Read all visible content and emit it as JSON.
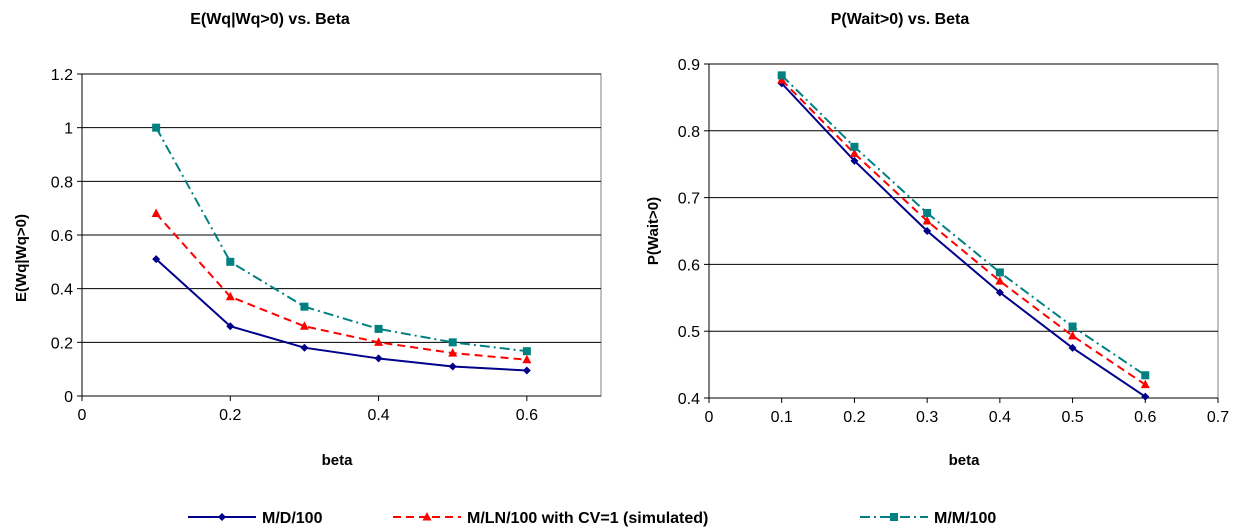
{
  "chart_data": [
    {
      "type": "line",
      "title": "E(Wq|Wq>0) vs. Beta",
      "xlabel": "beta",
      "ylabel": "E(Wq|Wq>0)",
      "xlim": [
        0,
        0.7
      ],
      "ylim": [
        0,
        1.2
      ],
      "xticks": [
        "0",
        "0.2",
        "0.4",
        "0.6"
      ],
      "xtick_values": [
        0,
        0.2,
        0.4,
        0.6
      ],
      "yticks": [
        "0",
        "0.2",
        "0.4",
        "0.6",
        "0.8",
        "1",
        "1.2"
      ],
      "ytick_values": [
        0,
        0.2,
        0.4,
        0.6,
        0.8,
        1,
        1.2
      ],
      "grid": true,
      "x": [
        0.1,
        0.2,
        0.3,
        0.4,
        0.5,
        0.6
      ],
      "series": [
        {
          "name": "M/D/100",
          "values": [
            0.51,
            0.26,
            0.18,
            0.14,
            0.11,
            0.095
          ]
        },
        {
          "name": "M/LN/100 with CV=1 (simulated)",
          "values": [
            0.68,
            0.37,
            0.26,
            0.2,
            0.16,
            0.135
          ]
        },
        {
          "name": "M/M/100",
          "values": [
            1.0,
            0.5,
            0.333,
            0.25,
            0.2,
            0.167
          ]
        }
      ]
    },
    {
      "type": "line",
      "title": "P(Wait>0) vs. Beta",
      "xlabel": "beta",
      "ylabel": "P(Wait>0)",
      "xlim": [
        0,
        0.7
      ],
      "ylim": [
        0.4,
        0.9
      ],
      "xticks": [
        "0",
        "0.1",
        "0.2",
        "0.3",
        "0.4",
        "0.5",
        "0.6",
        "0.7"
      ],
      "xtick_values": [
        0,
        0.1,
        0.2,
        0.3,
        0.4,
        0.5,
        0.6,
        0.7
      ],
      "yticks": [
        "0.4",
        "0.5",
        "0.6",
        "0.7",
        "0.8",
        "0.9"
      ],
      "ytick_values": [
        0.4,
        0.5,
        0.6,
        0.7,
        0.8,
        0.9
      ],
      "grid": true,
      "x": [
        0.1,
        0.2,
        0.3,
        0.4,
        0.5,
        0.6
      ],
      "series": [
        {
          "name": "M/D/100",
          "values": [
            0.871,
            0.755,
            0.65,
            0.558,
            0.475,
            0.402
          ]
        },
        {
          "name": "M/LN/100 with CV=1 (simulated)",
          "values": [
            0.876,
            0.766,
            0.665,
            0.575,
            0.493,
            0.42
          ]
        },
        {
          "name": "M/M/100",
          "values": [
            0.883,
            0.776,
            0.677,
            0.588,
            0.507,
            0.434
          ]
        }
      ]
    }
  ],
  "legend": {
    "placement": "bottom",
    "items": [
      {
        "label": "M/D/100",
        "color": "#00008B",
        "dash": "solid",
        "marker": "diamond"
      },
      {
        "label": "M/LN/100 with CV=1 (simulated)",
        "color": "#FF0000",
        "dash": "dashed",
        "marker": "triangle"
      },
      {
        "label": "M/M/100",
        "color": "#008080",
        "dash": "dash-dot",
        "marker": "square"
      }
    ]
  }
}
